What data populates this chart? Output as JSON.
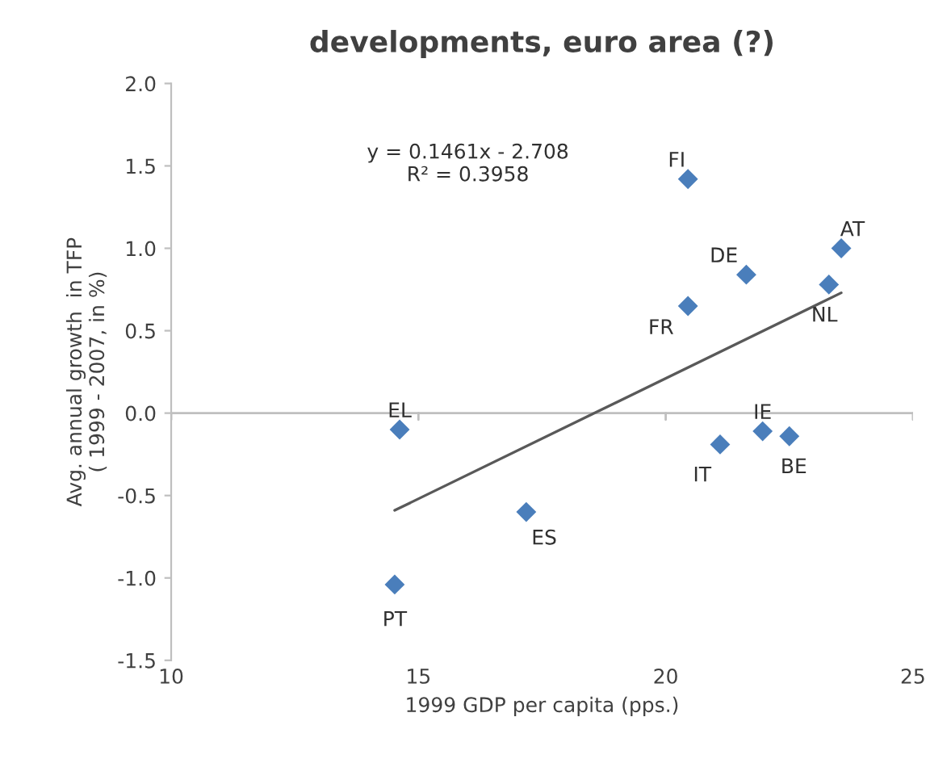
{
  "chart_data": {
    "type": "scatter",
    "title": "developments, euro area (?)",
    "xlabel": "1999 GDP per capita (pps.)",
    "ylabel": "Avg. annual growth  in TFP\n( 1999 - 2007, in %)",
    "xlim": [
      10,
      25
    ],
    "xticks": [
      10,
      15,
      20,
      25
    ],
    "ylim": [
      -1.5,
      2.0
    ],
    "yticks": [
      {
        "value": -1.5,
        "label": "-1.5"
      },
      {
        "value": -1.0,
        "label": "-1.0"
      },
      {
        "value": -0.5,
        "label": "-0.5"
      },
      {
        "value": 0.0,
        "label": "0.0"
      },
      {
        "value": 0.5,
        "label": "0.5"
      },
      {
        "value": 1.0,
        "label": "1.0"
      },
      {
        "value": 1.5,
        "label": "1.5"
      },
      {
        "value": 2.0,
        "label": "2.0"
      }
    ],
    "grid": false,
    "legend": false,
    "ref_lines": [
      {
        "axis": "y",
        "value": 0,
        "color": "#bfbfbf"
      }
    ],
    "series": [
      {
        "marker": "diamond",
        "color": "#4a7ebb",
        "x": [
          20.45,
          23.55,
          21.63,
          23.3,
          20.45,
          14.62,
          21.96,
          22.5,
          21.1,
          17.18,
          14.52
        ],
        "values": [
          1.42,
          1.0,
          0.84,
          0.78,
          0.65,
          -0.1,
          -0.11,
          -0.14,
          -0.19,
          -0.6,
          -1.04
        ]
      },
      {
        "type": "line",
        "color": "#595959",
        "x": [
          14.52,
          23.55
        ],
        "values": [
          -0.59,
          0.73
        ]
      }
    ],
    "annotations": [
      {
        "text": "FI",
        "x": 20.45,
        "y": 1.42
      },
      {
        "text": "AT",
        "x": 23.55,
        "y": 1.0
      },
      {
        "text": "DE",
        "x": 21.63,
        "y": 0.84
      },
      {
        "text": "NL",
        "x": 23.3,
        "y": 0.78
      },
      {
        "text": "FR",
        "x": 20.45,
        "y": 0.65
      },
      {
        "text": "EL",
        "x": 14.62,
        "y": -0.1
      },
      {
        "text": "IE",
        "x": 21.96,
        "y": -0.11
      },
      {
        "text": "BE",
        "x": 22.5,
        "y": -0.14
      },
      {
        "text": "IT",
        "x": 21.1,
        "y": -0.19
      },
      {
        "text": "ES",
        "x": 17.18,
        "y": -0.6
      },
      {
        "text": "PT",
        "x": 14.52,
        "y": -1.04
      },
      "y = 0.1461x - 2.708\nR² = 0.3958"
    ]
  }
}
